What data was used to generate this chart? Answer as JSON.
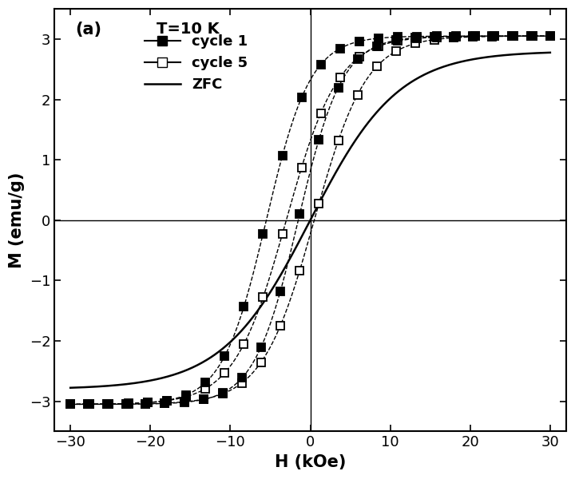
{
  "title_label": "(a)",
  "annotation": "T=10 K",
  "xlabel": "H (kOe)",
  "ylabel": "M (emu/g)",
  "xlim": [
    -32,
    32
  ],
  "ylim": [
    -3.5,
    3.5
  ],
  "xticks": [
    -30,
    -20,
    -10,
    0,
    10,
    20,
    30
  ],
  "yticks": [
    -3,
    -2,
    -1,
    0,
    1,
    2,
    3
  ],
  "bg_color": "#ffffff",
  "Ms1": 3.05,
  "Ms5": 3.05,
  "Ms_zfc": 2.8,
  "c1_upper_Hc": -1.5,
  "c1_lower_Hc": -5.5,
  "c1_sat": 5.5,
  "c5_upper_Hc": 0.5,
  "c5_lower_Hc": -3.0,
  "c5_sat": 6.5,
  "zfc_Hc": 0.0,
  "zfc_sat": 11.0,
  "marker_step": 10,
  "n_pts": 250
}
